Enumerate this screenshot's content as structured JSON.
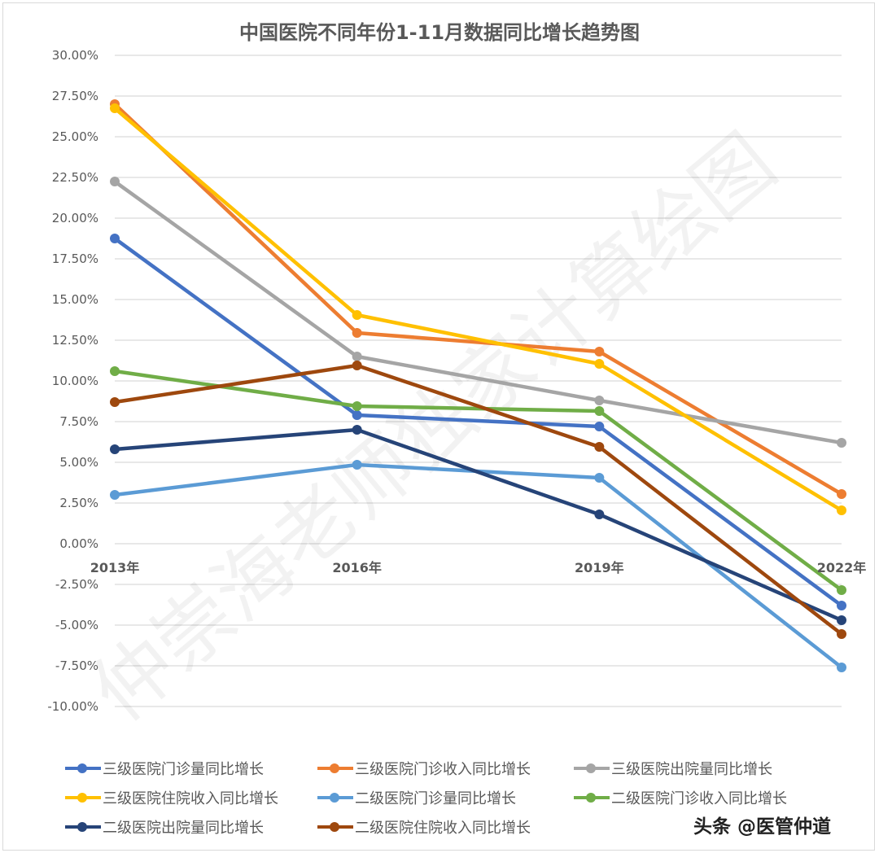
{
  "chart_data": {
    "type": "line",
    "title": "中国医院不同年份1-11月数据同比增长趋势图",
    "xlabel": "",
    "ylabel": "",
    "categories": [
      "2013年",
      "2016年",
      "2019年",
      "2022年"
    ],
    "ylim": [
      -10,
      30
    ],
    "yticks": [
      "30.00%",
      "27.50%",
      "25.00%",
      "22.50%",
      "20.00%",
      "17.50%",
      "15.00%",
      "12.50%",
      "10.00%",
      "7.50%",
      "5.00%",
      "2.50%",
      "0.00%",
      "-2.50%",
      "-5.00%",
      "-7.50%",
      "-10.00%"
    ],
    "grid": true,
    "legend_position": "bottom",
    "unit": "%",
    "series": [
      {
        "name": "三级医院门诊量同比增长",
        "color": "#4472C4",
        "values": [
          18.75,
          7.9,
          7.2,
          -3.8
        ]
      },
      {
        "name": "三级医院门诊收入同比增长",
        "color": "#ED7D31",
        "values": [
          27.0,
          12.95,
          11.8,
          3.05
        ]
      },
      {
        "name": "三级医院出院量同比增长",
        "color": "#A5A5A5",
        "values": [
          22.25,
          11.5,
          8.8,
          6.2
        ]
      },
      {
        "name": "三级医院住院收入同比增长",
        "color": "#FFC000",
        "values": [
          26.75,
          14.05,
          11.05,
          2.05
        ]
      },
      {
        "name": "二级医院门诊量同比增长",
        "color": "#5B9BD5",
        "values": [
          3.0,
          4.85,
          4.05,
          -7.6
        ]
      },
      {
        "name": "二级医院门诊收入同比增长",
        "color": "#70AD47",
        "values": [
          10.6,
          8.45,
          8.15,
          -2.85
        ]
      },
      {
        "name": "二级医院出院量同比增长",
        "color": "#264478",
        "values": [
          5.8,
          7.0,
          1.8,
          -4.7
        ]
      },
      {
        "name": "二级医院住院收入同比增长",
        "color": "#9E480E",
        "values": [
          8.7,
          10.95,
          5.95,
          -5.55
        ]
      }
    ],
    "annotations": [
      "仲崇海老师独家计算绘图"
    ]
  },
  "title": "中国医院不同年份1-11月数据同比增长趋势图",
  "watermark": "仲崇海老师独家计算绘图",
  "credit": "头条 @医管仲道",
  "legend": {
    "rows": [
      [
        0,
        1,
        2
      ],
      [
        3,
        4,
        5
      ],
      [
        6,
        7
      ]
    ]
  }
}
